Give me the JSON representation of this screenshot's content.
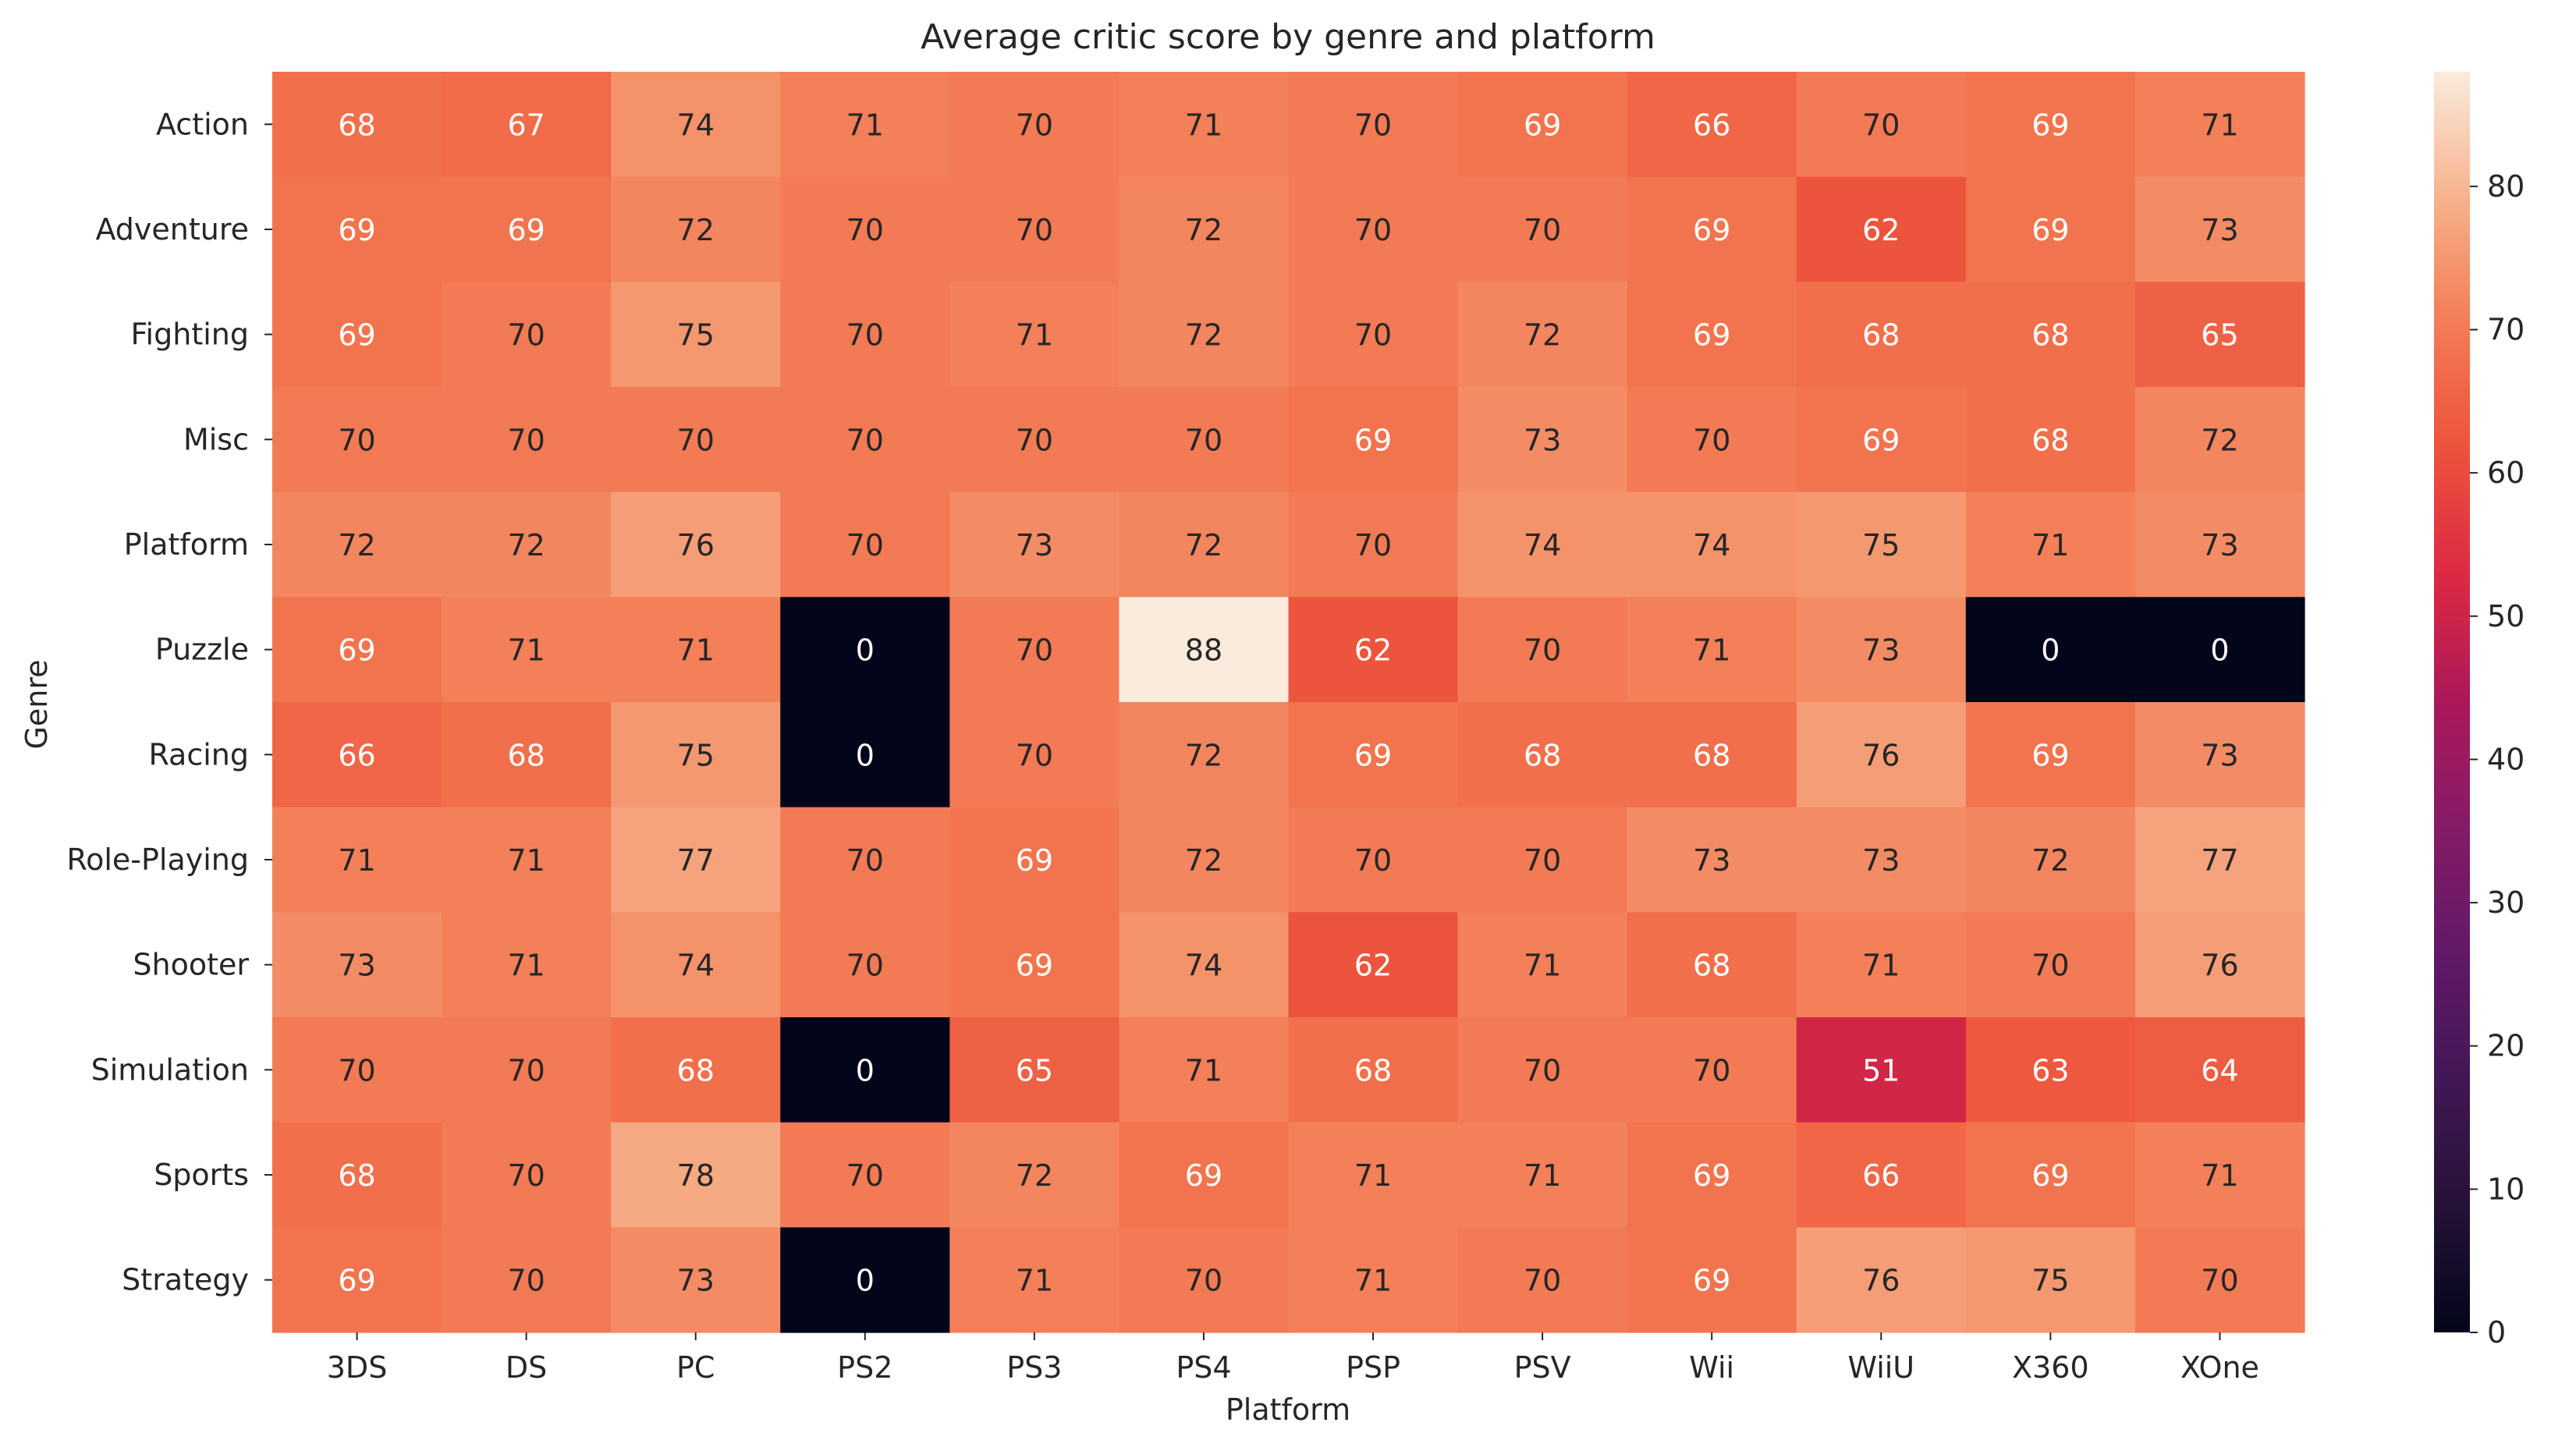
{
  "chart_data": {
    "type": "heatmap",
    "title": "Average critic score by genre and platform",
    "xlabel": "Platform",
    "ylabel": "Genre",
    "x_categories": [
      "3DS",
      "DS",
      "PC",
      "PS2",
      "PS3",
      "PS4",
      "PSP",
      "PSV",
      "Wii",
      "WiiU",
      "X360",
      "XOne"
    ],
    "y_categories": [
      "Action",
      "Adventure",
      "Fighting",
      "Misc",
      "Platform",
      "Puzzle",
      "Racing",
      "Role-Playing",
      "Shooter",
      "Simulation",
      "Sports",
      "Strategy"
    ],
    "values": [
      [
        68,
        67,
        74,
        71,
        70,
        71,
        70,
        69,
        66,
        70,
        69,
        71
      ],
      [
        69,
        69,
        72,
        70,
        70,
        72,
        70,
        70,
        69,
        62,
        69,
        73
      ],
      [
        69,
        70,
        75,
        70,
        71,
        72,
        70,
        72,
        69,
        68,
        68,
        65
      ],
      [
        70,
        70,
        70,
        70,
        70,
        70,
        69,
        73,
        70,
        69,
        68,
        72
      ],
      [
        72,
        72,
        76,
        70,
        73,
        72,
        70,
        74,
        74,
        75,
        71,
        73
      ],
      [
        69,
        71,
        71,
        0,
        70,
        88,
        62,
        70,
        71,
        73,
        0,
        0
      ],
      [
        66,
        68,
        75,
        0,
        70,
        72,
        69,
        68,
        68,
        76,
        69,
        73
      ],
      [
        71,
        71,
        77,
        70,
        69,
        72,
        70,
        70,
        73,
        73,
        72,
        77
      ],
      [
        73,
        71,
        74,
        70,
        69,
        74,
        62,
        71,
        68,
        71,
        70,
        76
      ],
      [
        70,
        70,
        68,
        0,
        65,
        71,
        68,
        70,
        70,
        51,
        63,
        64
      ],
      [
        68,
        70,
        78,
        70,
        72,
        69,
        71,
        71,
        69,
        66,
        69,
        71
      ],
      [
        69,
        70,
        73,
        0,
        71,
        70,
        71,
        70,
        69,
        76,
        75,
        70
      ]
    ],
    "color_range": [
      0,
      88
    ],
    "colormap": "rocket",
    "annotations": true,
    "colorbar": {
      "ticks": [
        0,
        10,
        20,
        30,
        40,
        50,
        60,
        70,
        80
      ]
    }
  }
}
